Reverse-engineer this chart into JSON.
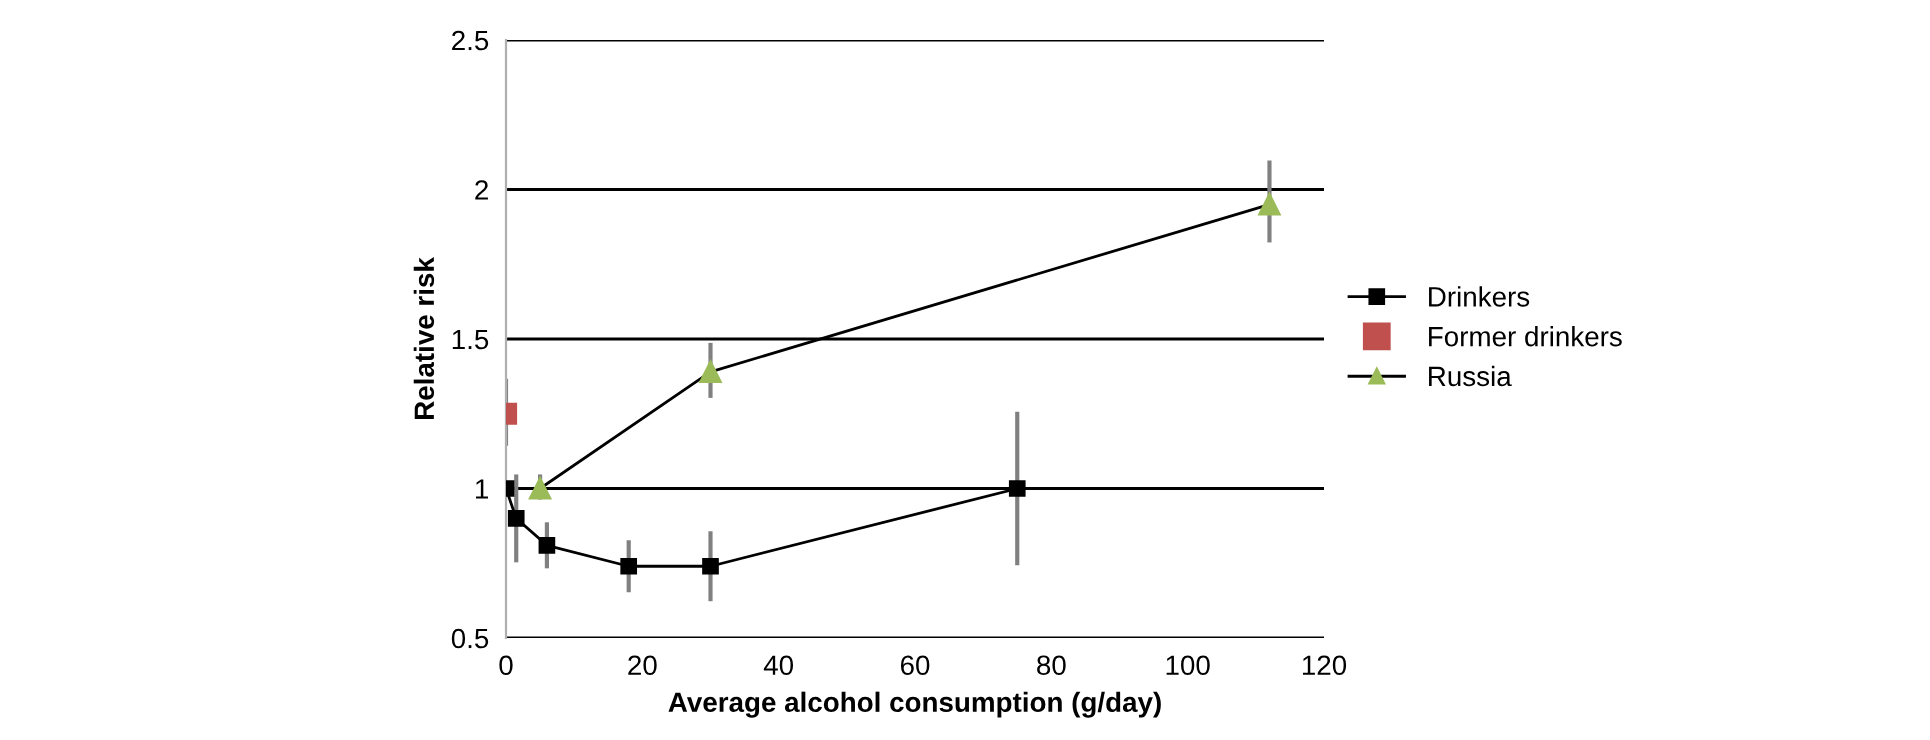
{
  "chart_data": {
    "type": "line",
    "xlabel": "Average alcohol consumption (g/day)",
    "ylabel": "Relative risk",
    "xlim": [
      0,
      120
    ],
    "xticks": [
      0,
      20,
      40,
      60,
      80,
      100,
      120
    ],
    "ylim": [
      0.5,
      2.5
    ],
    "yticks": [
      0.5,
      1,
      1.5,
      2,
      2.5
    ],
    "grid": "y",
    "legend": "right",
    "series": [
      {
        "name": "Drinkers",
        "marker": "square",
        "color": "#000000",
        "x": [
          0,
          1.5,
          6,
          18,
          30,
          75
        ],
        "values": [
          1.0,
          0.9,
          0.81,
          0.74,
          0.74,
          1.0
        ],
        "errors": [
          null,
          [
            0.76,
            1.04
          ],
          [
            0.74,
            0.88
          ],
          [
            0.66,
            0.82
          ],
          [
            0.63,
            0.85
          ],
          [
            0.75,
            1.25
          ]
        ]
      },
      {
        "name": "Former drinkers",
        "type": "scatter",
        "marker": "square",
        "color": "#c0504d",
        "x": [
          0
        ],
        "values": [
          1.25
        ],
        "errors": [
          [
            1.15,
            1.36
          ]
        ]
      },
      {
        "name": "Russia",
        "marker": "triangle",
        "color": "#9bbb59",
        "x": [
          5,
          30,
          112
        ],
        "values": [
          1.0,
          1.39,
          1.95
        ],
        "errors": [
          [
            0.97,
            1.04
          ],
          [
            1.31,
            1.48
          ],
          [
            1.83,
            2.09
          ]
        ]
      }
    ]
  }
}
